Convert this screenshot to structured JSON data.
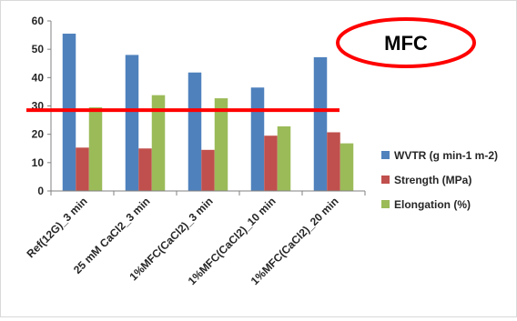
{
  "chart_data": {
    "type": "bar",
    "categories": [
      "Ref(12G)_3 min",
      "25 mM CaCl2_3 min",
      "1%MFC(CaCl2)_3 min",
      "1%MFC(CaCl2)_10 min",
      "1%MFC(CaCl2)_20 min"
    ],
    "series": [
      {
        "name": "WVTR (g min-1 m-2)",
        "values": [
          55.5,
          48,
          41.8,
          36.5,
          47.2
        ],
        "color": "#4f81bd"
      },
      {
        "name": "Strength (MPa)",
        "values": [
          15.3,
          15,
          14.5,
          19.5,
          20.7
        ],
        "color": "#c0504d"
      },
      {
        "name": "Elongation (%)",
        "values": [
          29.5,
          33.8,
          32.7,
          22.8,
          16.8
        ],
        "color": "#9bbb59"
      }
    ],
    "ylim": [
      0,
      60
    ],
    "yticks": [
      0,
      10,
      20,
      30,
      40,
      50,
      60
    ],
    "grid": false,
    "legend_position": "right",
    "reference_line": {
      "value": 28.5,
      "color": "#ff0000"
    },
    "annotation": {
      "text": "MFC",
      "shape": "ellipse",
      "color": "#ff0000"
    }
  }
}
